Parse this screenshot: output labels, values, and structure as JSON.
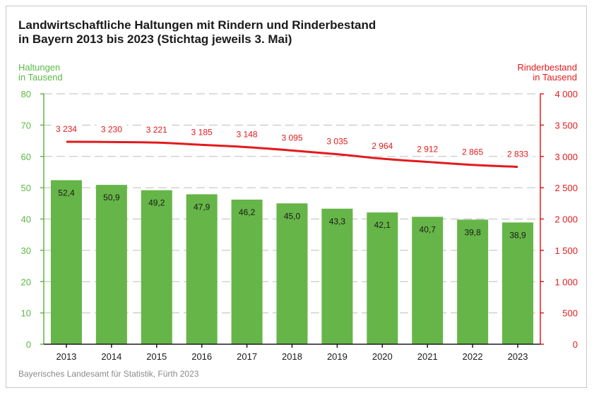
{
  "chart_data": {
    "type": "bar+line",
    "title": "Landwirtschaftliche Haltungen mit Rindern und Rinderbestand\nin Bayern 2013 bis 2023 (Stichtag jeweils 3. Mai)",
    "ylabel_left": "Haltungen\nin Tausend",
    "ylabel_right": "Rinderbestand\nin Tausend",
    "categories": [
      "2013",
      "2014",
      "2015",
      "2016",
      "2017",
      "2018",
      "2019",
      "2020",
      "2021",
      "2022",
      "2023"
    ],
    "series": [
      {
        "name": "Haltungen",
        "axis": "left",
        "kind": "bar",
        "values": [
          52.4,
          50.9,
          49.2,
          47.9,
          46.2,
          45.0,
          43.3,
          42.1,
          40.7,
          39.8,
          38.9
        ],
        "labels": [
          "52,4",
          "50,9",
          "49,2",
          "47,9",
          "46,2",
          "45,0",
          "43,3",
          "42,1",
          "40,7",
          "39,8",
          "38,9"
        ]
      },
      {
        "name": "Rinderbestand",
        "axis": "right",
        "kind": "line",
        "values": [
          3234,
          3230,
          3221,
          3185,
          3148,
          3095,
          3035,
          2964,
          2912,
          2865,
          2833
        ],
        "labels": [
          "3 234",
          "3 230",
          "3 221",
          "3 185",
          "3 148",
          "3 095",
          "3 035",
          "2 964",
          "2 912",
          "2 865",
          "2 833"
        ]
      }
    ],
    "ylim_left": [
      0,
      80
    ],
    "ylim_right": [
      0,
      4000
    ],
    "yticks_left": [
      0,
      10,
      20,
      30,
      40,
      50,
      60,
      70,
      80
    ],
    "yticks_left_labels": [
      "0",
      "10",
      "20",
      "30",
      "40",
      "50",
      "60",
      "70",
      "80"
    ],
    "yticks_right": [
      0,
      500,
      1000,
      1500,
      2000,
      2500,
      3000,
      3500,
      4000
    ],
    "yticks_right_labels": [
      "0",
      "500",
      "1 000",
      "1 500",
      "2 000",
      "2 500",
      "3 000",
      "3 500",
      "4 000"
    ],
    "grid": "dashed horizontal",
    "colors": {
      "bars": "#66b548",
      "line": "#e31a1c",
      "left_axis": "#5cb946",
      "right_axis": "#e31a1c"
    }
  },
  "source": "Bayerisches Landesamt für Statistik, Fürth 2023"
}
